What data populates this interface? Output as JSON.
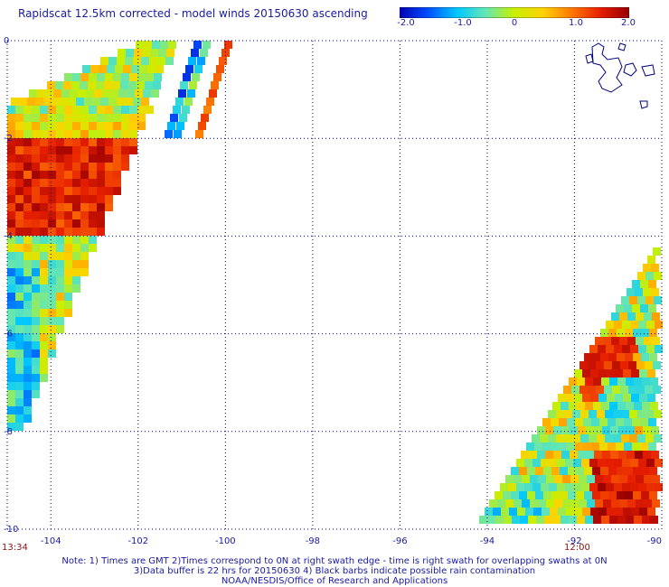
{
  "title": "Rapidscat 12.5km corrected - model winds 20150630 ascending",
  "colorbar": {
    "labels": [
      "-2.0",
      "-1.0",
      "0",
      "1.0",
      "2.0"
    ],
    "colors": [
      "#0000b4",
      "#0050ff",
      "#00c8ff",
      "#64e6b4",
      "#c8f000",
      "#ffd200",
      "#ff7800",
      "#e61e00",
      "#960000"
    ]
  },
  "axes": {
    "lon_labels": [
      "-104",
      "-102",
      "-100",
      "-98",
      "-96",
      "-94",
      "-92",
      "-90"
    ],
    "lat_labels": [
      "0",
      "-2",
      "-4",
      "-6",
      "-8",
      "-10"
    ],
    "lon_range": [
      -105,
      -90
    ],
    "lat_range": [
      -10,
      0
    ]
  },
  "swath_times": [
    "13:34",
    "12:00"
  ],
  "notes": [
    "Note: 1) Times are GMT 2)Times correspond to 0N at right swath edge - time is right swath for overlapping swaths at 0N",
    "3)Data buffer is 22 hrs for 20150630 4) Black barbs indicate possible rain contamination",
    "NOAA/NESDIS/Office of Research and Applications"
  ]
}
